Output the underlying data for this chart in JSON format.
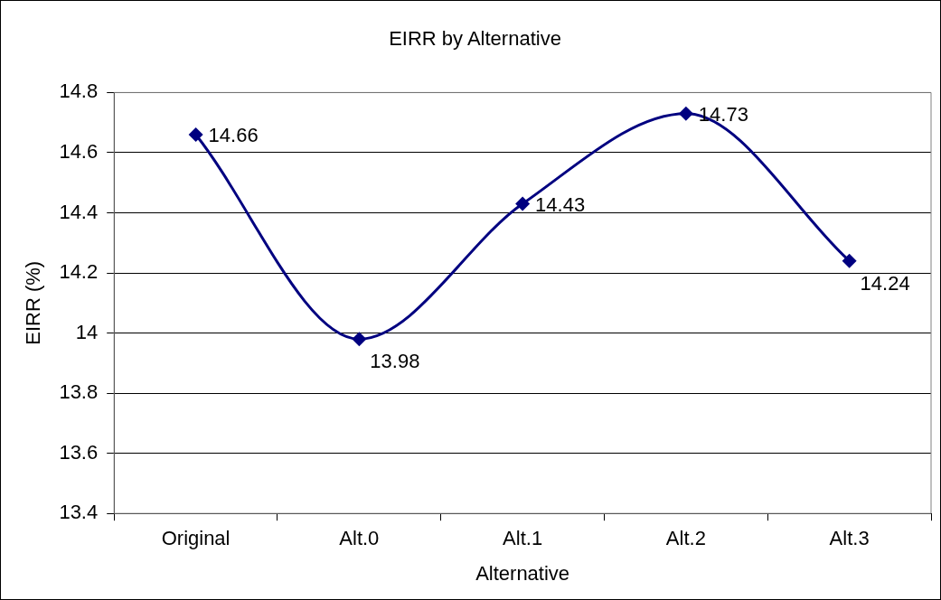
{
  "chart_data": {
    "type": "line",
    "title": "EIRR by Alternative",
    "xlabel": "Alternative",
    "ylabel": "EIRR (%)",
    "categories": [
      "Original",
      "Alt.0",
      "Alt.1",
      "Alt.2",
      "Alt.3"
    ],
    "series": [
      {
        "color": "#000080",
        "values": [
          14.66,
          13.98,
          14.43,
          14.73,
          14.24
        ]
      }
    ],
    "ylim": [
      13.4,
      14.8
    ],
    "yticks": [
      13.4,
      13.6,
      13.8,
      14,
      14.2,
      14.4,
      14.6,
      14.8
    ],
    "grid": "y",
    "legend": false,
    "marker": "diamond",
    "line_style": "solid",
    "data_labels": true
  }
}
